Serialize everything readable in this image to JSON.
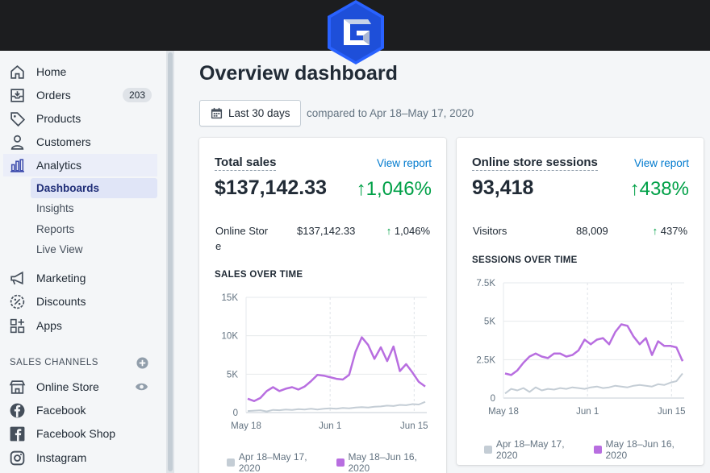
{
  "nav": {
    "items": [
      {
        "label": "Home",
        "icon": "home-icon"
      },
      {
        "label": "Orders",
        "icon": "orders-icon",
        "badge": "203"
      },
      {
        "label": "Products",
        "icon": "tag-icon"
      },
      {
        "label": "Customers",
        "icon": "person-icon"
      },
      {
        "label": "Analytics",
        "icon": "bar-chart-icon"
      }
    ],
    "analytics_sub": [
      "Dashboards",
      "Insights",
      "Reports",
      "Live View"
    ],
    "items2": [
      {
        "label": "Marketing",
        "icon": "megaphone-icon"
      },
      {
        "label": "Discounts",
        "icon": "discount-icon"
      },
      {
        "label": "Apps",
        "icon": "apps-icon"
      }
    ],
    "channels_heading": "SALES CHANNELS",
    "channels": [
      {
        "label": "Online Store",
        "icon": "store-icon"
      },
      {
        "label": "Facebook",
        "icon": "facebook-icon"
      },
      {
        "label": "Facebook Shop",
        "icon": "facebook-square-icon"
      },
      {
        "label": "Instagram",
        "icon": "instagram-icon"
      }
    ]
  },
  "page": {
    "title": "Overview dashboard",
    "date_button": "Last 30 days",
    "compare_text": "compared to Apr 18–May 17, 2020"
  },
  "cards": {
    "sales": {
      "title": "Total sales",
      "link": "View report",
      "value": "$137,142.33",
      "pct": "1,046%",
      "row_label_1": "Online Stor",
      "row_label_2": "e",
      "row_value": "$137,142.33",
      "row_pct": "1,046%",
      "chart_title": "SALES OVER TIME"
    },
    "sessions": {
      "title": "Online store sessions",
      "link": "View report",
      "value": "93,418",
      "pct": "438%",
      "row_label": "Visitors",
      "row_value": "88,009",
      "row_pct": "437%",
      "chart_title": "SESSIONS OVER TIME"
    }
  },
  "legend": {
    "prev": "Apr 18–May 17, 2020",
    "curr": "May 18–Jun 16, 2020"
  },
  "colors": {
    "accent": "#007ace",
    "positive": "#00a047",
    "current_series": "#b86ee0",
    "previous_series": "#c4cdd5"
  },
  "chart_data": [
    {
      "type": "line",
      "x_ticks": [
        "May 18",
        "Jun 1",
        "Jun 15"
      ],
      "y_ticks": [
        "0",
        "5K",
        "10K",
        "15K"
      ],
      "ylim": [
        0,
        15000
      ],
      "series": [
        {
          "name": "May 18–Jun 16, 2020",
          "values": [
            1800,
            1500,
            1900,
            2800,
            3300,
            2800,
            3100,
            3300,
            3000,
            3400,
            4100,
            4900,
            4800,
            4600,
            4400,
            4300,
            4900,
            7900,
            9800,
            8800,
            7000,
            8500,
            6700,
            8600,
            5400,
            6300,
            5200,
            4000,
            3400
          ]
        },
        {
          "name": "Apr 18–May 17, 2020",
          "values": [
            200,
            250,
            300,
            150,
            350,
            300,
            400,
            350,
            450,
            400,
            500,
            400,
            500,
            550,
            500,
            600,
            550,
            650,
            700,
            650,
            750,
            800,
            900,
            850,
            1000,
            950,
            1100,
            1050,
            1400
          ]
        }
      ]
    },
    {
      "type": "line",
      "x_ticks": [
        "May 18",
        "Jun 1",
        "Jun 15"
      ],
      "y_ticks": [
        "0",
        "2.5K",
        "5K",
        "7.5K"
      ],
      "ylim": [
        0,
        7500
      ],
      "series": [
        {
          "name": "May 18–Jun 16, 2020",
          "values": [
            1600,
            1500,
            1800,
            2300,
            2700,
            2900,
            2700,
            2600,
            2900,
            2900,
            2700,
            2800,
            3100,
            3800,
            3500,
            3800,
            3900,
            3500,
            4300,
            4800,
            4700,
            4000,
            3500,
            3900,
            2800,
            3700,
            3400,
            3400,
            3300,
            2400
          ]
        },
        {
          "name": "Apr 18–May 17, 2020",
          "values": [
            300,
            600,
            500,
            650,
            400,
            700,
            500,
            600,
            550,
            650,
            600,
            700,
            650,
            600,
            700,
            750,
            650,
            700,
            800,
            750,
            700,
            800,
            850,
            800,
            750,
            900,
            850,
            1000,
            1100,
            1600
          ]
        }
      ]
    }
  ]
}
